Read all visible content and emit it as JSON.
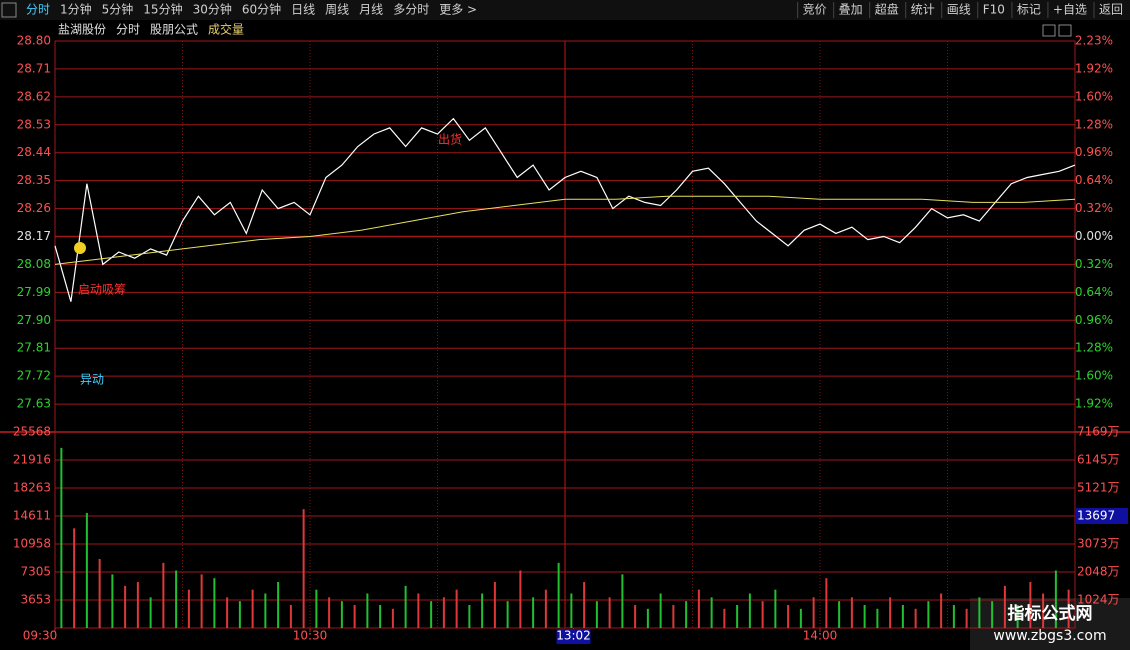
{
  "toolbar": {
    "left": [
      "分时",
      "1分钟",
      "5分钟",
      "15分钟",
      "30分钟",
      "60分钟",
      "日线",
      "周线",
      "月线",
      "多分时",
      "更多 >"
    ],
    "right": [
      "竞价",
      "叠加",
      "超盘",
      "统计",
      "画线",
      "F10",
      "标记",
      "+自选",
      "返回"
    ]
  },
  "header": [
    "盐湖股份",
    "分时",
    "股朋公式",
    "成交量"
  ],
  "chart_data": {
    "type": "line",
    "price": {
      "ylim": [
        27.54,
        28.8
      ],
      "yticks": [
        {
          "value": 28.8,
          "label": "28.80"
        },
        {
          "value": 28.71,
          "label": "28.71"
        },
        {
          "value": 28.62,
          "label": "28.62"
        },
        {
          "value": 28.53,
          "label": "28.53"
        },
        {
          "value": 28.44,
          "label": "28.44"
        },
        {
          "value": 28.35,
          "label": "28.35"
        },
        {
          "value": 28.26,
          "label": "28.26"
        },
        {
          "value": 28.17,
          "label": "28.17"
        },
        {
          "value": 28.08,
          "label": "28.08"
        },
        {
          "value": 27.99,
          "label": "27.99"
        },
        {
          "value": 27.9,
          "label": "27.90"
        },
        {
          "value": 27.81,
          "label": "27.81"
        },
        {
          "value": 27.72,
          "label": "27.72"
        },
        {
          "value": 27.63,
          "label": "27.63"
        }
      ],
      "pct_labels": [
        "2.23%",
        "1.92%",
        "1.60%",
        "1.28%",
        "0.96%",
        "0.64%",
        "0.32%",
        "0.00%",
        "0.32%",
        "0.64%",
        "0.96%",
        "1.28%",
        "1.60%",
        "1.92%"
      ],
      "series": [
        {
          "name": "price",
          "color": "#ffffff",
          "values": [
            28.14,
            27.96,
            28.34,
            28.08,
            28.12,
            28.1,
            28.13,
            28.11,
            28.22,
            28.3,
            28.24,
            28.28,
            28.18,
            28.32,
            28.26,
            28.28,
            28.24,
            28.36,
            28.4,
            28.46,
            28.5,
            28.52,
            28.46,
            28.52,
            28.5,
            28.55,
            28.48,
            28.52,
            28.44,
            28.36,
            28.4,
            28.32,
            28.36,
            28.38,
            28.36,
            28.26,
            28.3,
            28.28,
            28.27,
            28.32,
            28.38,
            28.39,
            28.34,
            28.28,
            28.22,
            28.18,
            28.14,
            28.19,
            28.21,
            28.18,
            28.2,
            28.16,
            28.17,
            28.15,
            28.2,
            28.26,
            28.23,
            28.24,
            28.22,
            28.28,
            28.34,
            28.36,
            28.37,
            28.38,
            28.4
          ]
        },
        {
          "name": "average",
          "color": "#e8e060",
          "values": [
            28.08,
            28.1,
            28.12,
            28.14,
            28.16,
            28.17,
            28.19,
            28.22,
            28.25,
            28.27,
            28.29,
            28.29,
            28.3,
            28.3,
            28.3,
            28.29,
            28.29,
            28.29,
            28.28,
            28.28,
            28.29
          ]
        }
      ]
    },
    "volume": {
      "ylim": [
        0,
        25568
      ],
      "yticks": [
        25568,
        21916,
        18263,
        14611,
        10958,
        7305,
        3653
      ],
      "right_labels": [
        "7169万",
        "6145万",
        "5121万",
        "13697",
        "3073万",
        "2048万",
        "1024万"
      ],
      "color_up": "#e03838",
      "color_down": "#20c030",
      "values": [
        23500,
        13000,
        15000,
        9000,
        7000,
        5500,
        6000,
        4000,
        8500,
        7500,
        5000,
        7000,
        6500,
        4000,
        3500,
        5000,
        4500,
        6000,
        3000,
        15500,
        5000,
        4000,
        3500,
        3000,
        4500,
        3000,
        2500,
        5500,
        4500,
        3500,
        4000,
        5000,
        3000,
        4500,
        6000,
        3500,
        7500,
        4000,
        5000,
        8500,
        4500,
        6000,
        3500,
        4000,
        7000,
        3000,
        2500,
        4500,
        3000,
        3500,
        5000,
        4000,
        2500,
        3000,
        4500,
        3500,
        5000,
        3000,
        2500,
        4000,
        6500,
        3500,
        4000,
        3000,
        2500,
        4000,
        3000,
        2500,
        3500,
        4500,
        3000,
        2500,
        4000,
        3500,
        5500,
        3000,
        6000,
        4500,
        7500,
        5000
      ],
      "rising": [
        0,
        1,
        0,
        1,
        0,
        1,
        1,
        0,
        1,
        0,
        1,
        1,
        0,
        1,
        0,
        1,
        0,
        0,
        1,
        1,
        0,
        1,
        0,
        1,
        0,
        0,
        1,
        0,
        1,
        0,
        1,
        1,
        0,
        0,
        1,
        0,
        1,
        0,
        1,
        0,
        0,
        1,
        0,
        1,
        0,
        1,
        0,
        0,
        1,
        0,
        1,
        0,
        1,
        0,
        0,
        1,
        0,
        1,
        0,
        1,
        1,
        0,
        1,
        0,
        0,
        1,
        0,
        1,
        0,
        1,
        0,
        1,
        0,
        0,
        1,
        0,
        1,
        1,
        0,
        1
      ]
    },
    "xticks": [
      {
        "value": 0,
        "label": "09:30"
      },
      {
        "value": 60,
        "label": "10:30"
      },
      {
        "value": 122,
        "label": "13:02"
      },
      {
        "value": 180,
        "label": "14:00"
      }
    ],
    "xlim": [
      0,
      240
    ],
    "annotations": [
      "启动吸筹",
      "异动",
      "出货"
    ]
  },
  "watermark": [
    "指标公式网",
    "www.zbgs3.com"
  ]
}
